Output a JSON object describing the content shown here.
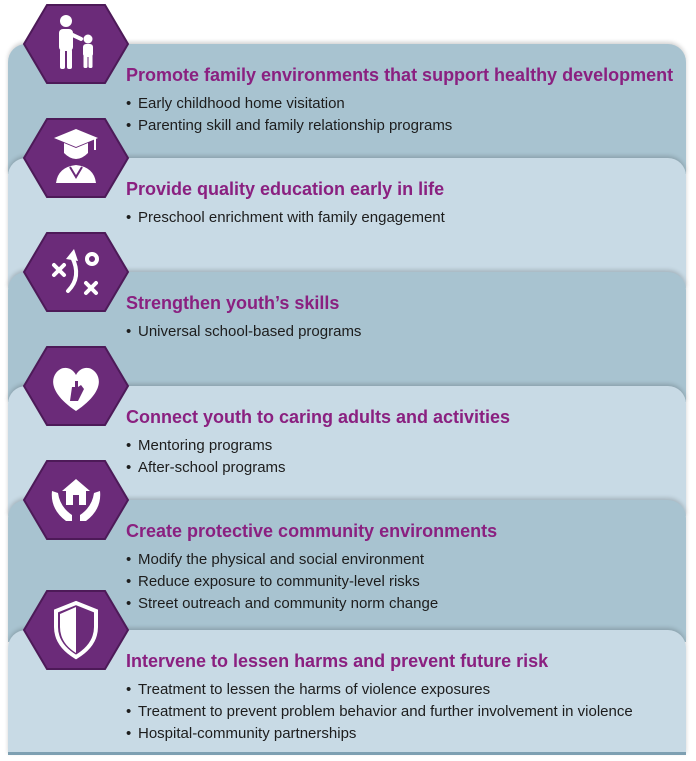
{
  "colors": {
    "accent": "#8a2080",
    "hex_fill": "#6b2b79",
    "panel_dark": "#a8c3d0",
    "panel_light": "#c8dae5"
  },
  "items": [
    {
      "icon": "parent-child-icon",
      "title": "Promote family environments that support healthy development",
      "bullets": [
        "Early childhood home visitation",
        "Parenting skill and family relationship programs"
      ]
    },
    {
      "icon": "graduate-icon",
      "title": "Provide quality education early in life",
      "bullets": [
        "Preschool enrichment with family engagement"
      ]
    },
    {
      "icon": "strategy-icon",
      "title": "Strengthen youth’s skills",
      "bullets": [
        "Universal school-based programs"
      ]
    },
    {
      "icon": "heart-hand-icon",
      "title": "Connect youth to caring adults and activities",
      "bullets": [
        "Mentoring programs",
        "After-school programs"
      ]
    },
    {
      "icon": "hands-house-icon",
      "title": "Create protective community environments",
      "bullets": [
        "Modify the physical and social environment",
        "Reduce exposure to community-level risks",
        "Street outreach and community norm change"
      ]
    },
    {
      "icon": "shield-icon",
      "title": "Intervene to lessen harms and prevent future risk",
      "bullets": [
        "Treatment to lessen the harms of violence exposures",
        "Treatment to prevent problem behavior and further involvement in violence",
        "Hospital-community partnerships"
      ]
    }
  ]
}
